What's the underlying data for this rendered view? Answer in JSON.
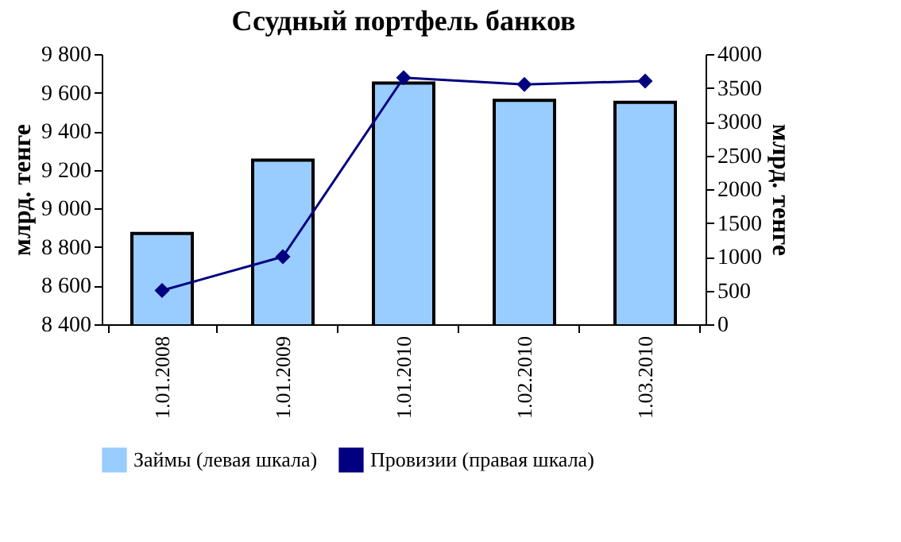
{
  "chart_data": {
    "type": "bar",
    "title": "Ссудный портфель банков",
    "ylabel": "млрд. тенге",
    "y2label": "млрд. тенге",
    "categories": [
      "1.01.2008",
      "1.01.2009",
      "1.01.2010",
      "1.02.2010",
      "1.03.2010"
    ],
    "series": [
      {
        "name": "Займы (левая шкала)",
        "color": "#99ccff",
        "values": [
          8870,
          9250,
          9650,
          9560,
          9550
        ]
      },
      {
        "name": "Провизии (правая шкала)",
        "type": "line",
        "axis": "y2",
        "color": "#000080",
        "marker": "diamond",
        "values": [
          500,
          1000,
          3650,
          3550,
          3600
        ]
      }
    ],
    "ylim": [
      8400,
      9800
    ],
    "yticks": [
      {
        "value": 8400,
        "label": "8 400"
      },
      {
        "value": 8600,
        "label": "8 600"
      },
      {
        "value": 8800,
        "label": "8 800"
      },
      {
        "value": 9000,
        "label": "9 000"
      },
      {
        "value": 9200,
        "label": "9 200"
      },
      {
        "value": 9400,
        "label": "9 400"
      },
      {
        "value": 9600,
        "label": "9 600"
      },
      {
        "value": 9800,
        "label": "9 800"
      }
    ],
    "y2lim": [
      0,
      4000
    ],
    "y2ticks": [
      0,
      500,
      1000,
      1500,
      2000,
      2500,
      3000,
      3500,
      4000
    ],
    "grid": false,
    "legend": "bottom"
  }
}
